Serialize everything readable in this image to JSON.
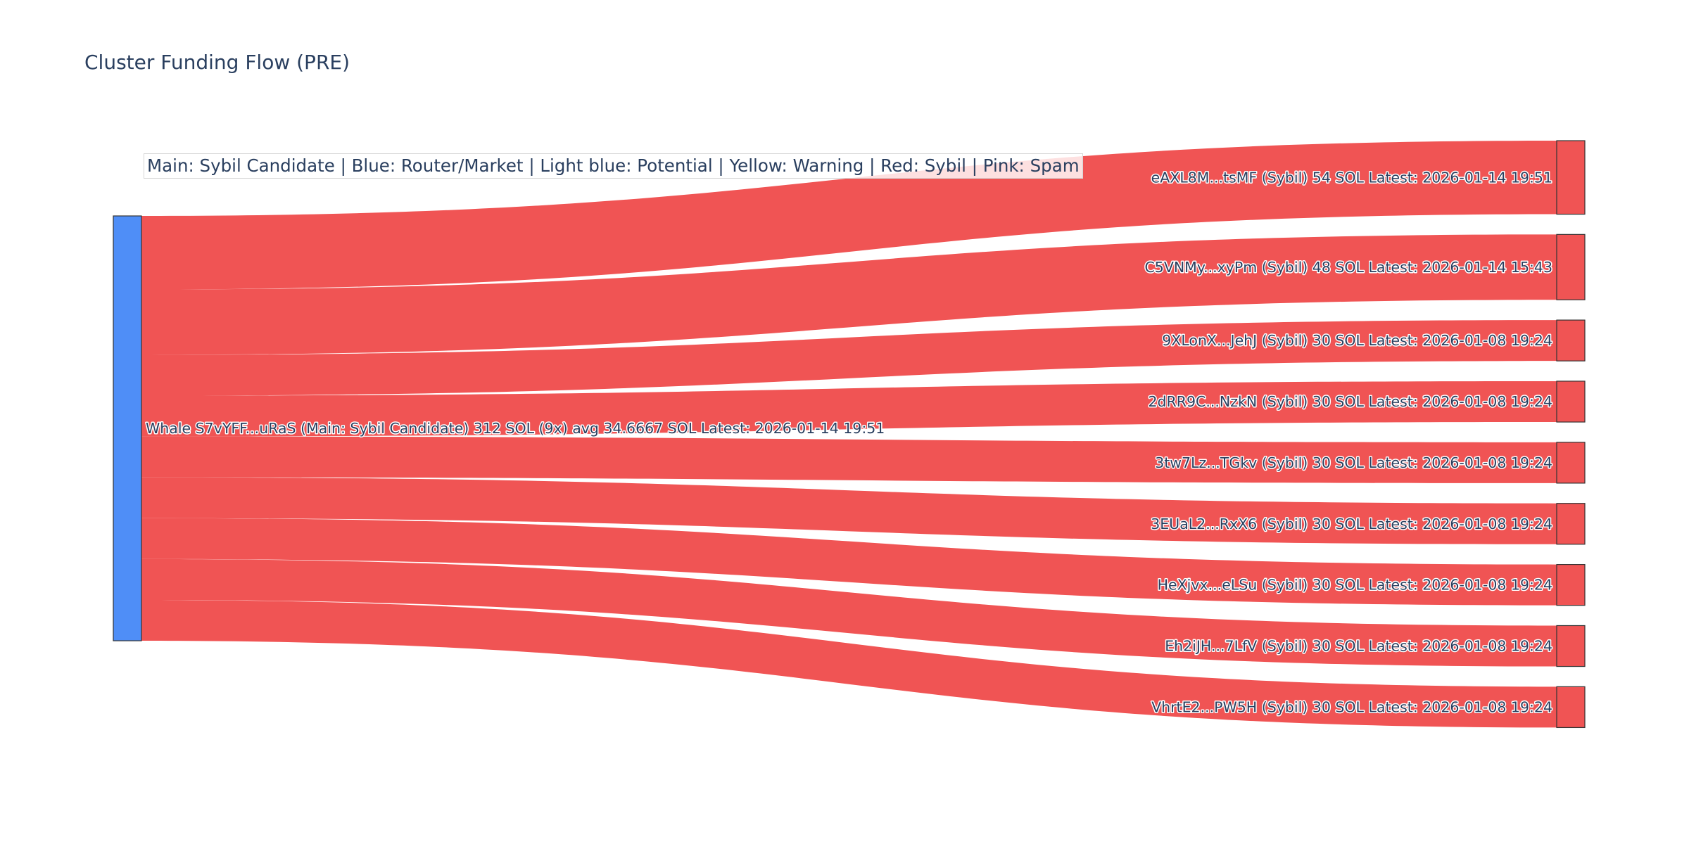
{
  "title": "Cluster Funding Flow (PRE)",
  "legend_note": "Main: Sybil Candidate  |  Blue: Router/Market | Light blue: Potential | Yellow: Warning | Red: Sybil | Pink: Spam",
  "colors": {
    "source_node": "#4f8ef7",
    "target_node": "#f05454",
    "link": "#f05454",
    "node_border": "#333333",
    "text": "#2a3f5f"
  },
  "chart_data": {
    "type": "sankey",
    "title": "Cluster Funding Flow (PRE)",
    "unit": "SOL",
    "source": {
      "id": "whale",
      "label": "Whale S7vYFF...uRaS (Main: Sybil Candidate) 312 SOL (9x) avg 34.6667 SOL Latest: 2026-01-14 19:51",
      "value": 312,
      "count": 9,
      "avg": 34.6667,
      "latest": "2026-01-14 19:51"
    },
    "targets": [
      {
        "id": "eAXL8M",
        "label": "eAXL8M...tsMF (Sybil) 54 SOL Latest: 2026-01-14 19:51",
        "value": 54,
        "category": "Sybil",
        "latest": "2026-01-14 19:51"
      },
      {
        "id": "C5VNMy",
        "label": "C5VNMy...xyPm (Sybil) 48 SOL Latest: 2026-01-14 15:43",
        "value": 48,
        "category": "Sybil",
        "latest": "2026-01-14 15:43"
      },
      {
        "id": "9XLonX",
        "label": "9XLonX...JehJ (Sybil) 30 SOL Latest: 2026-01-08 19:24",
        "value": 30,
        "category": "Sybil",
        "latest": "2026-01-08 19:24"
      },
      {
        "id": "2dRR9C",
        "label": "2dRR9C...NzkN (Sybil) 30 SOL Latest: 2026-01-08 19:24",
        "value": 30,
        "category": "Sybil",
        "latest": "2026-01-08 19:24"
      },
      {
        "id": "3tw7Lz",
        "label": "3tw7Lz...TGkv (Sybil) 30 SOL Latest: 2026-01-08 19:24",
        "value": 30,
        "category": "Sybil",
        "latest": "2026-01-08 19:24"
      },
      {
        "id": "3EUaL2",
        "label": "3EUaL2...RxX6 (Sybil) 30 SOL Latest: 2026-01-08 19:24",
        "value": 30,
        "category": "Sybil",
        "latest": "2026-01-08 19:24"
      },
      {
        "id": "HeXjvx",
        "label": "HeXjvx...eLSu (Sybil) 30 SOL Latest: 2026-01-08 19:24",
        "value": 30,
        "category": "Sybil",
        "latest": "2026-01-08 19:24"
      },
      {
        "id": "Eh2iJH",
        "label": "Eh2iJH...7LfV (Sybil) 30 SOL Latest: 2026-01-08 19:24",
        "value": 30,
        "category": "Sybil",
        "latest": "2026-01-08 19:24"
      },
      {
        "id": "VhrtE2",
        "label": "VhrtE2...PW5H (Sybil) 30 SOL Latest: 2026-01-08 19:24",
        "value": 30,
        "category": "Sybil",
        "latest": "2026-01-08 19:24"
      }
    ]
  }
}
